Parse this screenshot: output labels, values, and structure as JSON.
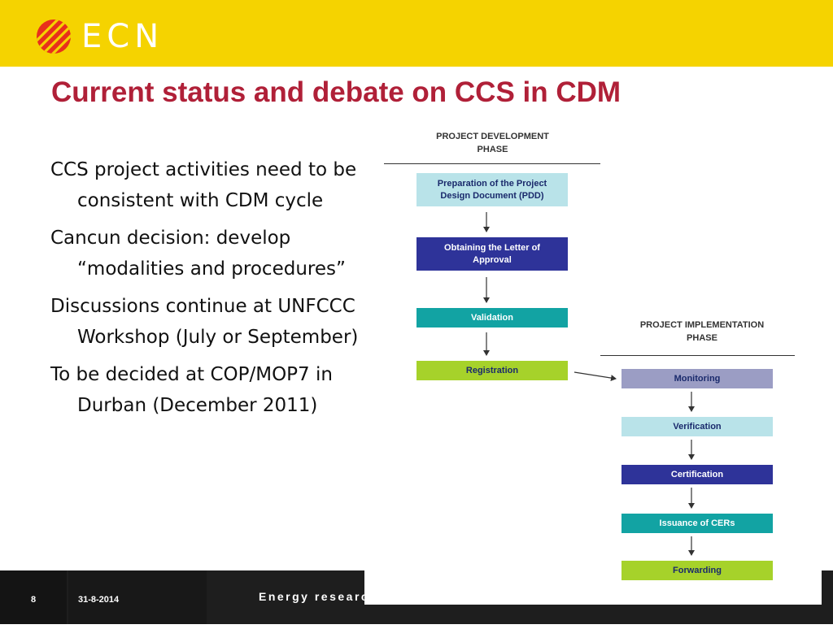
{
  "header": {
    "logo_text": "ECN",
    "accent_color": "#f5d300",
    "logo_mark_color": "#e8301c"
  },
  "slide": {
    "title": "Current status and debate on CCS in CDM",
    "title_color": "#b02038",
    "bullets": [
      "CCS project activities need to be consistent with CDM cycle",
      "Cancun decision: develop “modalities and procedures”",
      "Discussions continue at UNFCCC Workshop (July or September)",
      "To be decided at COP/MOP7 in Durban (December 2011)"
    ]
  },
  "diagram": {
    "development_phase": {
      "label_line1": "PROJECT DEVELOPMENT",
      "label_line2": "PHASE",
      "steps": [
        {
          "label_line1": "Preparation of the Project",
          "label_line2": "Design Document (PDD)",
          "fill": "#b9e3e9",
          "text_color": "#1a2a6c"
        },
        {
          "label_line1": "Obtaining the Letter of",
          "label_line2": "Approval",
          "fill": "#2e3399",
          "text_color": "#ffffff"
        },
        {
          "label_line1": "Validation",
          "label_line2": "",
          "fill": "#12a3a3",
          "text_color": "#ffffff"
        },
        {
          "label_line1": "Registration",
          "label_line2": "",
          "fill": "#a6d22a",
          "text_color": "#1a2a6c"
        }
      ]
    },
    "implementation_phase": {
      "label_line1": "PROJECT IMPLEMENTATION",
      "label_line2": "PHASE",
      "steps": [
        {
          "label_line1": "Monitoring",
          "label_line2": "",
          "fill": "#9b9dc4",
          "text_color": "#1a2a6c"
        },
        {
          "label_line1": "Verification",
          "label_line2": "",
          "fill": "#b9e3e9",
          "text_color": "#1a2a6c"
        },
        {
          "label_line1": "Certification",
          "label_line2": "",
          "fill": "#2e3399",
          "text_color": "#ffffff"
        },
        {
          "label_line1": "Issuance of CERs",
          "label_line2": "",
          "fill": "#12a3a3",
          "text_color": "#ffffff"
        },
        {
          "label_line1": "Forwarding",
          "label_line2": "",
          "fill": "#a6d22a",
          "text_color": "#1a2a6c"
        }
      ]
    }
  },
  "footer": {
    "page_number": "8",
    "date": "31-8-2014",
    "tagline": "Energy researc"
  }
}
